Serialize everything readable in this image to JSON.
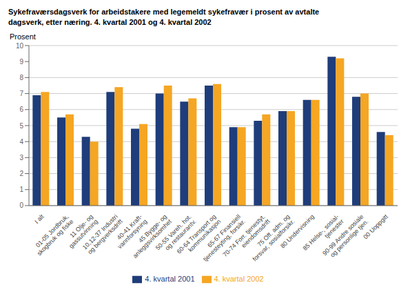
{
  "chart_data": {
    "type": "bar",
    "title": "Sykefraværsdagsverk for arbeidstakere med legemeldt sykefravær i prosent av avtalte\ndagsverk, etter næring. 4. kvartal 2001 og 4. kvartal 2002",
    "y_label": "Prosent",
    "categories": [
      "I alt",
      "01-05 Jordbruk,\nskogbruk og fiske",
      "11 Olje- og\ngassutvinning",
      "10,12-37 Industri\nog bergverksdrift",
      "40-41 Kraft-\nvannforsyning",
      "45 Bygge- og\nanleggsvirksomhet",
      "50-55 Vareh. hot.\nog restaurantv.",
      "60-64 Transport og\nkommunikasjon",
      "65-67 Finansiell\ntjenesteyting, forsikr.",
      "70-74 Forr. tjenestyt.\neiendomsdrift",
      "75 Off. adm. og\nforsvar, sosialforsikr.",
      "80 Undervisning",
      "85 Helse-, sosial-\ntjenester",
      "90-99 Andre sosiale\nog personlige tjen.",
      "00 Uoppgitt"
    ],
    "series": [
      {
        "name": "4. kvartal 2001",
        "color": "#1f3d7a",
        "values": [
          6.9,
          5.5,
          4.3,
          7.1,
          4.8,
          7.0,
          6.5,
          7.5,
          4.9,
          5.3,
          5.9,
          6.6,
          9.3,
          6.8,
          4.6
        ]
      },
      {
        "name": "4. kvartal 2002",
        "color": "#f5a623",
        "values": [
          7.1,
          5.7,
          4.0,
          7.4,
          5.1,
          7.5,
          6.7,
          7.6,
          4.9,
          5.7,
          5.9,
          6.6,
          9.2,
          7.0,
          4.4
        ]
      }
    ],
    "ylim": [
      0,
      10
    ],
    "yticks": [
      0,
      1,
      2,
      3,
      4,
      5,
      6,
      7,
      8,
      9,
      10
    ],
    "grid": true,
    "legend": "bottom"
  }
}
